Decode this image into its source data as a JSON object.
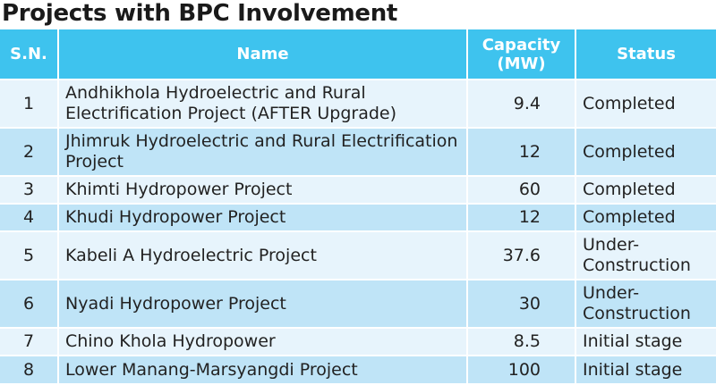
{
  "title": "Projects with BPC Involvement",
  "columns": {
    "sn": "S.N.",
    "name": "Name",
    "capacity": "Capacity (MW)",
    "status": "Status"
  },
  "rows": [
    {
      "sn": "1",
      "name": "Andhikhola Hydroelectric and Rural Electrification Project (AFTER Upgrade)",
      "capacity": "9.4",
      "status": "Completed"
    },
    {
      "sn": "2",
      "name": "Jhimruk Hydroelectric and Rural Electrification Project",
      "capacity": "12",
      "status": "Completed"
    },
    {
      "sn": "3",
      "name": "Khimti Hydropower Project",
      "capacity": "60",
      "status": "Completed"
    },
    {
      "sn": "4",
      "name": "Khudi Hydropower Project",
      "capacity": "12",
      "status": "Completed"
    },
    {
      "sn": "5",
      "name": "Kabeli A Hydroelectric Project",
      "capacity": "37.6",
      "status": "Under-Construction"
    },
    {
      "sn": "6",
      "name": "Nyadi Hydropower Project",
      "capacity": "30",
      "status": "Under-Construction"
    },
    {
      "sn": "7",
      "name": "Chino Khola Hydropower",
      "capacity": "8.5",
      "status": "Initial stage"
    },
    {
      "sn": "8",
      "name": "Lower Manang-Marsyangdi Project",
      "capacity": "100",
      "status": "Initial stage"
    }
  ]
}
